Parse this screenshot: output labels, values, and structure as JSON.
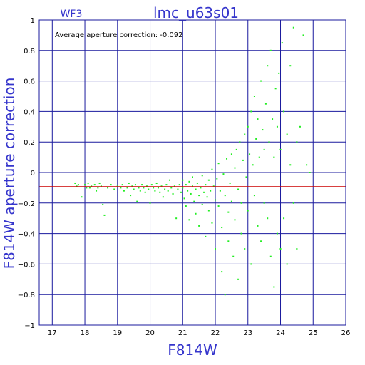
{
  "chart_data": {
    "type": "scatter",
    "title": "lmc_u63s01",
    "chip_label": "WF3",
    "xlabel": "F814W",
    "ylabel": "F814W aperture correction",
    "annotation": "Average aperture correction: -0.092",
    "xlim": [
      16.6,
      26
    ],
    "ylim": [
      -1,
      1
    ],
    "xticks": [
      17,
      18,
      19,
      20,
      21,
      22,
      23,
      24,
      25,
      26
    ],
    "yticks": [
      -1,
      -0.8,
      -0.6,
      -0.4,
      -0.2,
      0,
      0.2,
      0.4,
      0.6,
      0.8,
      1
    ],
    "xtick_labels": [
      "17",
      "18",
      "19",
      "20",
      "21",
      "22",
      "23",
      "24",
      "25",
      "26"
    ],
    "ytick_labels": [
      "−1",
      "−0.8",
      "−0.6",
      "−0.4",
      "−0.2",
      "0",
      "0.2",
      "0.4",
      "0.6",
      "0.8",
      "1"
    ],
    "grid": true,
    "average_line": -0.092,
    "colors": {
      "points": "#22ee22",
      "average_line": "#cc0000",
      "grid": "#1a1a9e",
      "labels": "#3535cc"
    },
    "series": [
      {
        "points": [
          [
            17.7,
            -0.07
          ],
          [
            17.75,
            -0.09
          ],
          [
            17.8,
            -0.08
          ],
          [
            17.9,
            -0.16
          ],
          [
            18.0,
            -0.08
          ],
          [
            18.05,
            -0.1
          ],
          [
            18.1,
            -0.07
          ],
          [
            18.15,
            -0.1
          ],
          [
            18.2,
            -0.09
          ],
          [
            18.3,
            -0.08
          ],
          [
            18.35,
            -0.12
          ],
          [
            18.4,
            -0.1
          ],
          [
            18.45,
            -0.07
          ],
          [
            18.5,
            -0.09
          ],
          [
            18.55,
            -0.21
          ],
          [
            18.6,
            -0.28
          ],
          [
            18.7,
            -0.1
          ],
          [
            18.8,
            -0.08
          ],
          [
            18.9,
            -0.11
          ],
          [
            19.0,
            -0.09
          ],
          [
            19.1,
            -0.1
          ],
          [
            19.15,
            -0.08
          ],
          [
            19.2,
            -0.12
          ],
          [
            19.3,
            -0.1
          ],
          [
            19.35,
            -0.07
          ],
          [
            19.4,
            -0.15
          ],
          [
            19.45,
            -0.09
          ],
          [
            19.5,
            -0.11
          ],
          [
            19.55,
            -0.08
          ],
          [
            19.6,
            -0.19
          ],
          [
            19.65,
            -0.1
          ],
          [
            19.7,
            -0.12
          ],
          [
            19.75,
            -0.08
          ],
          [
            19.8,
            -0.1
          ],
          [
            19.85,
            -0.13
          ],
          [
            19.9,
            -0.09
          ],
          [
            19.95,
            -0.11
          ],
          [
            20.0,
            -0.2
          ],
          [
            20.05,
            -0.08
          ],
          [
            20.1,
            -0.1
          ],
          [
            20.15,
            -0.12
          ],
          [
            20.2,
            -0.07
          ],
          [
            20.25,
            -0.1
          ],
          [
            20.3,
            -0.13
          ],
          [
            20.35,
            -0.09
          ],
          [
            20.4,
            -0.16
          ],
          [
            20.45,
            -0.11
          ],
          [
            20.5,
            -0.08
          ],
          [
            20.55,
            -0.12
          ],
          [
            20.6,
            -0.05
          ],
          [
            20.65,
            -0.1
          ],
          [
            20.7,
            -0.14
          ],
          [
            20.75,
            -0.09
          ],
          [
            20.8,
            -0.3
          ],
          [
            20.85,
            -0.11
          ],
          [
            20.9,
            -0.08
          ],
          [
            20.95,
            -0.13
          ],
          [
            21.0,
            -0.1
          ],
          [
            21.0,
            -0.05
          ],
          [
            21.05,
            -0.17
          ],
          [
            21.1,
            -0.08
          ],
          [
            21.1,
            -0.22
          ],
          [
            21.15,
            -0.12
          ],
          [
            21.2,
            -0.06
          ],
          [
            21.2,
            -0.31
          ],
          [
            21.25,
            -0.14
          ],
          [
            21.3,
            -0.09
          ],
          [
            21.3,
            -0.03
          ],
          [
            21.35,
            -0.19
          ],
          [
            21.4,
            -0.11
          ],
          [
            21.4,
            -0.27
          ],
          [
            21.45,
            -0.07
          ],
          [
            21.5,
            -0.15
          ],
          [
            21.5,
            -0.35
          ],
          [
            21.55,
            -0.1
          ],
          [
            21.6,
            -0.02
          ],
          [
            21.6,
            -0.21
          ],
          [
            21.65,
            -0.13
          ],
          [
            21.7,
            -0.08
          ],
          [
            21.7,
            -0.42
          ],
          [
            21.75,
            -0.16
          ],
          [
            21.8,
            -0.05
          ],
          [
            21.8,
            -0.25
          ],
          [
            21.85,
            -0.12
          ],
          [
            21.9,
            0.02
          ],
          [
            21.9,
            -0.33
          ],
          [
            21.95,
            -0.09
          ],
          [
            22.0,
            -0.18
          ],
          [
            22.0,
            -0.5
          ],
          [
            22.05,
            -0.04
          ],
          [
            22.1,
            -0.22
          ],
          [
            22.1,
            0.06
          ],
          [
            22.15,
            -0.12
          ],
          [
            22.2,
            -0.36
          ],
          [
            22.2,
            -0.65
          ],
          [
            22.25,
            -0.01
          ],
          [
            22.3,
            -0.15
          ],
          [
            22.3,
            -0.8
          ],
          [
            22.35,
            0.09
          ],
          [
            22.4,
            -0.26
          ],
          [
            22.4,
            -0.45
          ],
          [
            22.45,
            -0.07
          ],
          [
            22.5,
            0.12
          ],
          [
            22.5,
            -0.19
          ],
          [
            22.55,
            -0.55
          ],
          [
            22.6,
            0.03
          ],
          [
            22.6,
            -0.31
          ],
          [
            22.65,
            0.15
          ],
          [
            22.7,
            -0.11
          ],
          [
            22.7,
            -0.7
          ],
          [
            22.75,
            0.2
          ],
          [
            22.8,
            -0.2
          ],
          [
            22.8,
            -0.4
          ],
          [
            22.85,
            0.08
          ],
          [
            22.9,
            0.25
          ],
          [
            22.9,
            -0.5
          ],
          [
            22.95,
            -0.03
          ],
          [
            23.0,
            0.3
          ],
          [
            23.0,
            -0.25
          ],
          [
            23.05,
            0.12
          ],
          [
            23.1,
            0.4
          ],
          [
            23.1,
            -0.6
          ],
          [
            23.15,
            0.05
          ],
          [
            23.2,
            0.5
          ],
          [
            23.2,
            -0.15
          ],
          [
            23.25,
            0.22
          ],
          [
            23.3,
            0.35
          ],
          [
            23.3,
            -0.35
          ],
          [
            23.35,
            0.1
          ],
          [
            23.4,
            0.6
          ],
          [
            23.4,
            -0.45
          ],
          [
            23.45,
            0.28
          ],
          [
            23.5,
            0.15
          ],
          [
            23.5,
            -0.2
          ],
          [
            23.55,
            0.45
          ],
          [
            23.6,
            0.7
          ],
          [
            23.6,
            -0.3
          ],
          [
            23.65,
            0.2
          ],
          [
            23.7,
            0.8
          ],
          [
            23.7,
            -0.55
          ],
          [
            23.75,
            0.35
          ],
          [
            23.8,
            0.1
          ],
          [
            23.8,
            -0.75
          ],
          [
            23.85,
            0.55
          ],
          [
            23.9,
            0.3
          ],
          [
            23.9,
            -0.4
          ],
          [
            23.95,
            0.65
          ],
          [
            24.0,
            0.15
          ],
          [
            24.0,
            -0.5
          ],
          [
            24.05,
            0.85
          ],
          [
            24.1,
            0.4
          ],
          [
            24.1,
            -0.3
          ],
          [
            24.2,
            0.25
          ],
          [
            24.2,
            -0.6
          ],
          [
            24.3,
            0.05
          ],
          [
            24.3,
            0.7
          ],
          [
            24.4,
            0.95
          ],
          [
            24.4,
            -0.2
          ],
          [
            24.5,
            0.2
          ],
          [
            24.5,
            -0.5
          ],
          [
            24.6,
            0.3
          ],
          [
            24.7,
            0.9
          ],
          [
            24.8,
            0.05
          ],
          [
            24.9,
            0.0
          ]
        ]
      }
    ]
  }
}
